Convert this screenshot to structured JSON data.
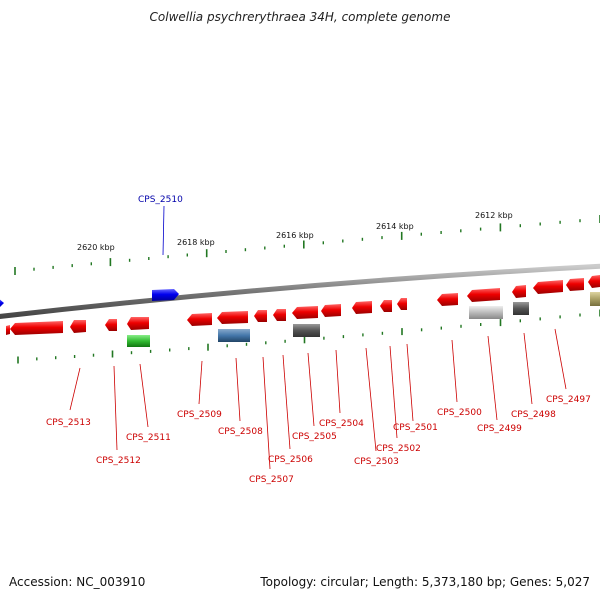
{
  "title": "Colwellia psychrerythraea 34H, complete genome",
  "footer": {
    "accession": "Accession: NC_003910",
    "summary": "Topology: circular; Length: 5,373,180 bp; Genes: 5,027"
  },
  "scale_labels": [
    "2620 kbp",
    "2618 kbp",
    "2616 kbp",
    "2614 kbp",
    "2612 kbp"
  ],
  "genes_forward": [
    {
      "label": "CPS_2510",
      "color": "#0000ee"
    }
  ],
  "genes_reverse": [
    {
      "label": "CPS_2513",
      "color": "#ee0000"
    },
    {
      "label": "CPS_2512",
      "color": "#ee0000"
    },
    {
      "label": "CPS_2511",
      "color": "#ee0000"
    },
    {
      "label": "CPS_2509",
      "color": "#ee0000"
    },
    {
      "label": "CPS_2508",
      "color": "#ee0000"
    },
    {
      "label": "CPS_2507",
      "color": "#ee0000"
    },
    {
      "label": "CPS_2506",
      "color": "#ee0000"
    },
    {
      "label": "CPS_2505",
      "color": "#ee0000"
    },
    {
      "label": "CPS_2504",
      "color": "#ee0000"
    },
    {
      "label": "CPS_2503",
      "color": "#ee0000"
    },
    {
      "label": "CPS_2502",
      "color": "#ee0000"
    },
    {
      "label": "CPS_2501",
      "color": "#ee0000"
    },
    {
      "label": "CPS_2500",
      "color": "#ee0000"
    },
    {
      "label": "CPS_2499",
      "color": "#ee0000"
    },
    {
      "label": "CPS_2498",
      "color": "#ee0000"
    },
    {
      "label": "CPS_2497",
      "color": "#ee0000"
    }
  ],
  "colors": {
    "forward": "#0000ee",
    "reverse": "#ee0000",
    "tick": "#227722",
    "backbone": "#888888",
    "rna_green": "#33bb33",
    "rna_blue": "#4477aa",
    "rna_dark": "#555555",
    "rna_light": "#bbbbbb",
    "rna_olive": "#aaa066"
  }
}
